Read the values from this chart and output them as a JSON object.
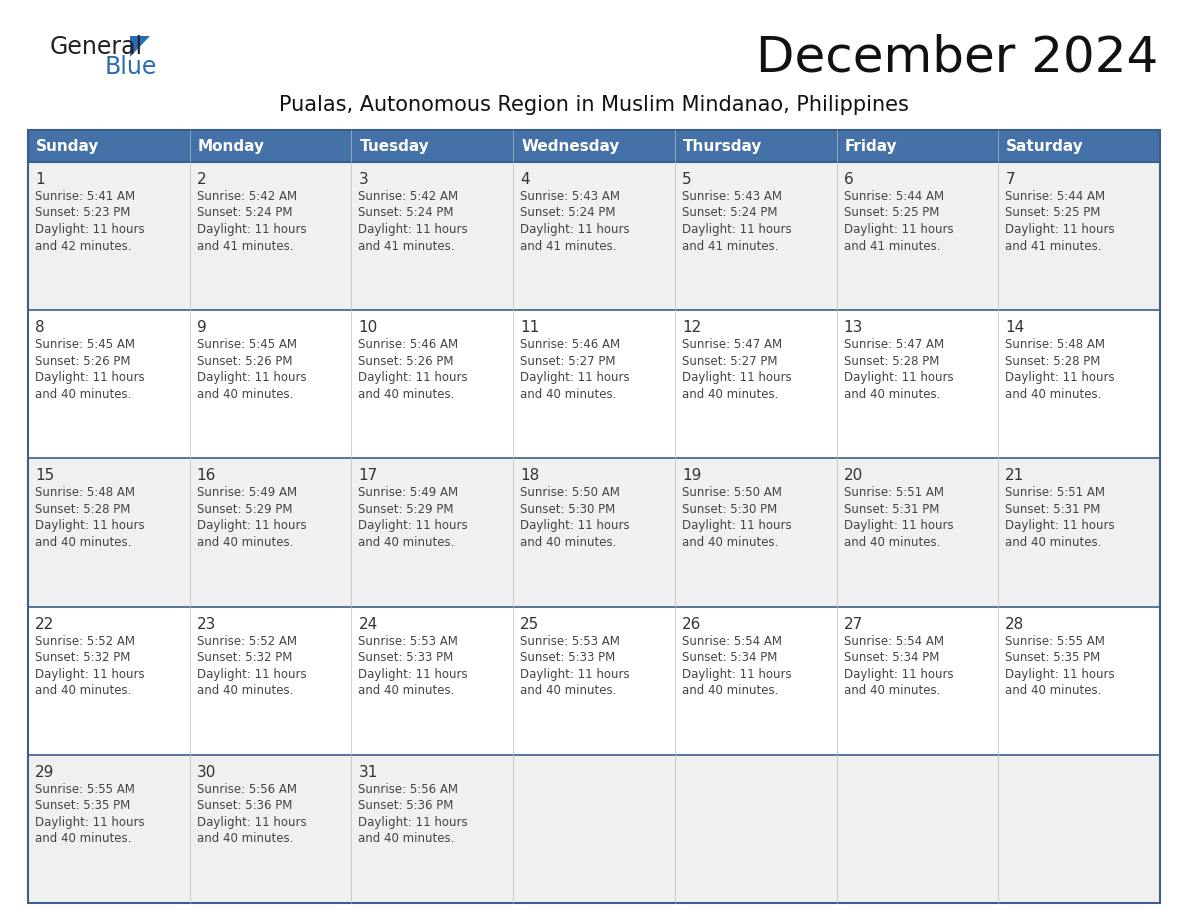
{
  "title": "December 2024",
  "subtitle": "Pualas, Autonomous Region in Muslim Mindanao, Philippines",
  "days_of_week": [
    "Sunday",
    "Monday",
    "Tuesday",
    "Wednesday",
    "Thursday",
    "Friday",
    "Saturday"
  ],
  "header_bg": "#4472a8",
  "header_text": "#ffffff",
  "cell_bg_odd": "#f0f0f0",
  "cell_bg_even": "#ffffff",
  "border_color": "#3a5f8a",
  "row_sep_color": "#3a5f8a",
  "day_num_color": "#333333",
  "text_color": "#444444",
  "logo_general_color": "#222222",
  "logo_blue_color": "#2a6db5",
  "calendar_data": [
    [
      {
        "day": "1",
        "sunrise": "5:41 AM",
        "sunset": "5:23 PM",
        "daylight_h": "11 hours",
        "daylight_m": "and 42 minutes."
      },
      {
        "day": "2",
        "sunrise": "5:42 AM",
        "sunset": "5:24 PM",
        "daylight_h": "11 hours",
        "daylight_m": "and 41 minutes."
      },
      {
        "day": "3",
        "sunrise": "5:42 AM",
        "sunset": "5:24 PM",
        "daylight_h": "11 hours",
        "daylight_m": "and 41 minutes."
      },
      {
        "day": "4",
        "sunrise": "5:43 AM",
        "sunset": "5:24 PM",
        "daylight_h": "11 hours",
        "daylight_m": "and 41 minutes."
      },
      {
        "day": "5",
        "sunrise": "5:43 AM",
        "sunset": "5:24 PM",
        "daylight_h": "11 hours",
        "daylight_m": "and 41 minutes."
      },
      {
        "day": "6",
        "sunrise": "5:44 AM",
        "sunset": "5:25 PM",
        "daylight_h": "11 hours",
        "daylight_m": "and 41 minutes."
      },
      {
        "day": "7",
        "sunrise": "5:44 AM",
        "sunset": "5:25 PM",
        "daylight_h": "11 hours",
        "daylight_m": "and 41 minutes."
      }
    ],
    [
      {
        "day": "8",
        "sunrise": "5:45 AM",
        "sunset": "5:26 PM",
        "daylight_h": "11 hours",
        "daylight_m": "and 40 minutes."
      },
      {
        "day": "9",
        "sunrise": "5:45 AM",
        "sunset": "5:26 PM",
        "daylight_h": "11 hours",
        "daylight_m": "and 40 minutes."
      },
      {
        "day": "10",
        "sunrise": "5:46 AM",
        "sunset": "5:26 PM",
        "daylight_h": "11 hours",
        "daylight_m": "and 40 minutes."
      },
      {
        "day": "11",
        "sunrise": "5:46 AM",
        "sunset": "5:27 PM",
        "daylight_h": "11 hours",
        "daylight_m": "and 40 minutes."
      },
      {
        "day": "12",
        "sunrise": "5:47 AM",
        "sunset": "5:27 PM",
        "daylight_h": "11 hours",
        "daylight_m": "and 40 minutes."
      },
      {
        "day": "13",
        "sunrise": "5:47 AM",
        "sunset": "5:28 PM",
        "daylight_h": "11 hours",
        "daylight_m": "and 40 minutes."
      },
      {
        "day": "14",
        "sunrise": "5:48 AM",
        "sunset": "5:28 PM",
        "daylight_h": "11 hours",
        "daylight_m": "and 40 minutes."
      }
    ],
    [
      {
        "day": "15",
        "sunrise": "5:48 AM",
        "sunset": "5:28 PM",
        "daylight_h": "11 hours",
        "daylight_m": "and 40 minutes."
      },
      {
        "day": "16",
        "sunrise": "5:49 AM",
        "sunset": "5:29 PM",
        "daylight_h": "11 hours",
        "daylight_m": "and 40 minutes."
      },
      {
        "day": "17",
        "sunrise": "5:49 AM",
        "sunset": "5:29 PM",
        "daylight_h": "11 hours",
        "daylight_m": "and 40 minutes."
      },
      {
        "day": "18",
        "sunrise": "5:50 AM",
        "sunset": "5:30 PM",
        "daylight_h": "11 hours",
        "daylight_m": "and 40 minutes."
      },
      {
        "day": "19",
        "sunrise": "5:50 AM",
        "sunset": "5:30 PM",
        "daylight_h": "11 hours",
        "daylight_m": "and 40 minutes."
      },
      {
        "day": "20",
        "sunrise": "5:51 AM",
        "sunset": "5:31 PM",
        "daylight_h": "11 hours",
        "daylight_m": "and 40 minutes."
      },
      {
        "day": "21",
        "sunrise": "5:51 AM",
        "sunset": "5:31 PM",
        "daylight_h": "11 hours",
        "daylight_m": "and 40 minutes."
      }
    ],
    [
      {
        "day": "22",
        "sunrise": "5:52 AM",
        "sunset": "5:32 PM",
        "daylight_h": "11 hours",
        "daylight_m": "and 40 minutes."
      },
      {
        "day": "23",
        "sunrise": "5:52 AM",
        "sunset": "5:32 PM",
        "daylight_h": "11 hours",
        "daylight_m": "and 40 minutes."
      },
      {
        "day": "24",
        "sunrise": "5:53 AM",
        "sunset": "5:33 PM",
        "daylight_h": "11 hours",
        "daylight_m": "and 40 minutes."
      },
      {
        "day": "25",
        "sunrise": "5:53 AM",
        "sunset": "5:33 PM",
        "daylight_h": "11 hours",
        "daylight_m": "and 40 minutes."
      },
      {
        "day": "26",
        "sunrise": "5:54 AM",
        "sunset": "5:34 PM",
        "daylight_h": "11 hours",
        "daylight_m": "and 40 minutes."
      },
      {
        "day": "27",
        "sunrise": "5:54 AM",
        "sunset": "5:34 PM",
        "daylight_h": "11 hours",
        "daylight_m": "and 40 minutes."
      },
      {
        "day": "28",
        "sunrise": "5:55 AM",
        "sunset": "5:35 PM",
        "daylight_h": "11 hours",
        "daylight_m": "and 40 minutes."
      }
    ],
    [
      {
        "day": "29",
        "sunrise": "5:55 AM",
        "sunset": "5:35 PM",
        "daylight_h": "11 hours",
        "daylight_m": "and 40 minutes."
      },
      {
        "day": "30",
        "sunrise": "5:56 AM",
        "sunset": "5:36 PM",
        "daylight_h": "11 hours",
        "daylight_m": "and 40 minutes."
      },
      {
        "day": "31",
        "sunrise": "5:56 AM",
        "sunset": "5:36 PM",
        "daylight_h": "11 hours",
        "daylight_m": "and 40 minutes."
      },
      null,
      null,
      null,
      null
    ]
  ]
}
